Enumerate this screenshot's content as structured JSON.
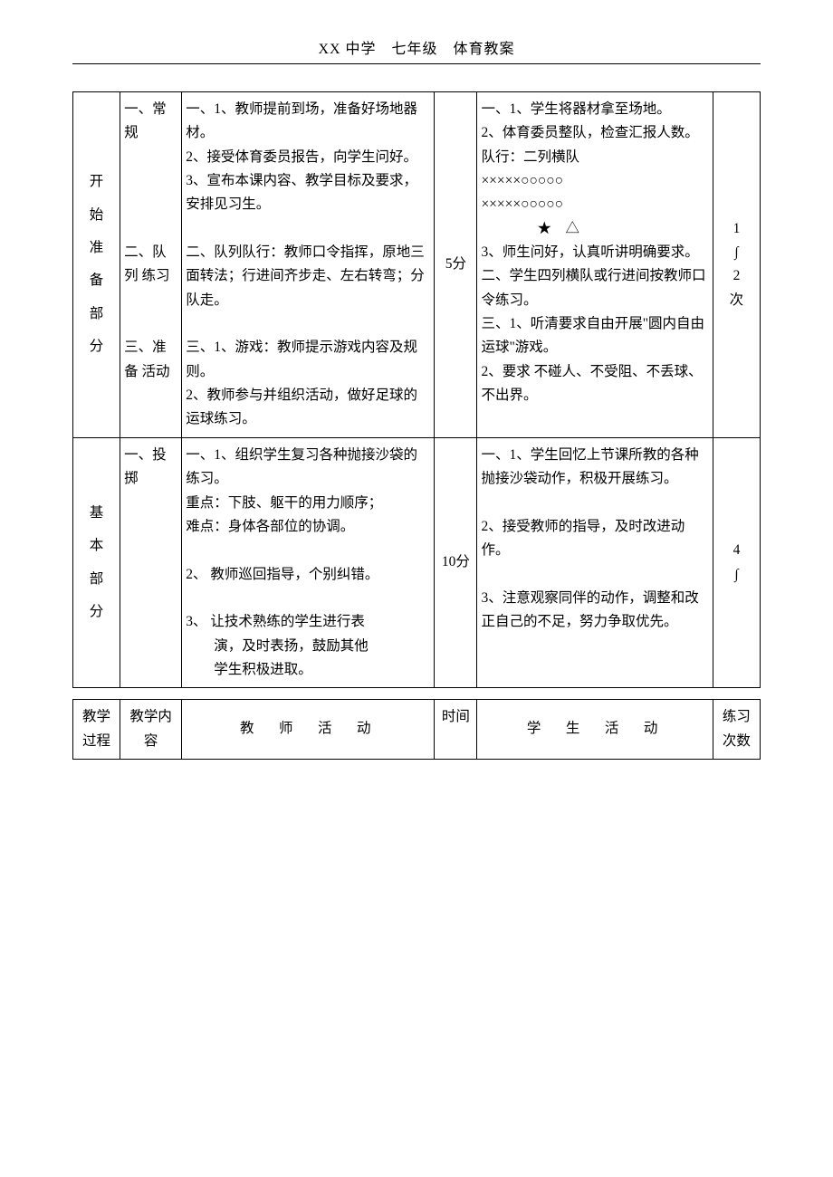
{
  "header": "XX 中学　七年级　体育教案",
  "t1": {
    "r1": {
      "c1": [
        "开",
        "始",
        "准",
        "备",
        "部",
        "分"
      ],
      "c2": "一、常规\n\n\n\n\n二、队列 练习\n\n\n三、准备 活动",
      "c3": "一、1、教师提前到场，准备好场地器材。\n2、接受体育委员报告，向学生问好。\n3、宣布本课内容、教学目标及要求，安排见习生。\n\n二、队列队行：教师口令指挥，原地三面转法；行进间齐步走、左右转弯；分队走。\n\n三、1、游戏：教师提示游戏内容及规则。\n2、教师参与并组织活动，做好足球的运球练习。",
      "c4": "5分",
      "c5": "一、1、学生将器材拿至场地。\n2、体育委员整队，检查汇报人数。队行：二列横队\n×××××○○○○○\n×××××○○○○○\n　　　　★　△\n3、师生问好，认真听讲明确要求。\n二、学生四列横队或行进间按教师口令练习。\n三、1、听清要求自由开展\"圆内自由运球\"游戏。\n2、要求 不碰人、不受阻、不丢球、不出界。",
      "c6": "1\n∫\n2\n次"
    },
    "r2": {
      "c1": [
        "基",
        "本",
        "部",
        "分"
      ],
      "c2": "一、投掷",
      "c3": "一、1、组织学生复习各种抛接沙袋的练习。\n重点：下肢、躯干的用力顺序；\n难点：身体各部位的协调。\n\n2、 教师巡回指导，个别纠错。\n\n3、 让技术熟练的学生进行表\n　　演，及时表扬，鼓励其他\n　　学生积极进取。",
      "c4": "10分",
      "c5": "一、1、学生回忆上节课所教的各种抛接沙袋动作，积极开展练习。\n\n2、接受教师的指导，及时改进动作。\n\n3、注意观察同伴的动作，调整和改正自己的不足，努力争取优先。",
      "c6": "4\n∫"
    }
  },
  "t2": {
    "h": [
      "教学过程",
      "教学内容",
      "教　师　活　动",
      "时间",
      "学　生　活　动",
      "练习次数"
    ]
  }
}
